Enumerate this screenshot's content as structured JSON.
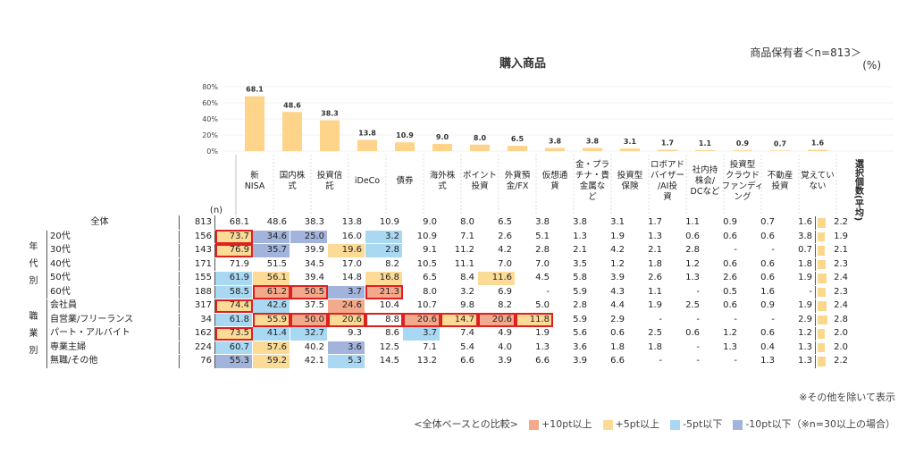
{
  "header": {
    "title": "購入商品",
    "base": "商品保有者＜n=813＞",
    "unit": "(%)"
  },
  "colors": {
    "plus10": "#f2a98c",
    "plus5": "#fcdb97",
    "minus5": "#a9d8f3",
    "minus10": "#a3b4dc",
    "bar": "#fdd48a",
    "highlight": "#e02020",
    "avg_bar": "#fbd78c"
  },
  "chart_data": {
    "type": "bar",
    "title": "購入商品",
    "categories": [
      "新\nNISA",
      "国内株\n式",
      "投資信\n託",
      "iDeCo",
      "債券",
      "海外株\n式",
      "ポイント\n投資",
      "外貨預\n金/FX",
      "仮想通\n貨",
      "金・プラ\nチナ・貴\n金属な\nど",
      "投資型\n保険",
      "ロボアド\nバイザー\n/AI投\n資",
      "社内持\n株会/\nDCなど",
      "投資型\nクラウド\nファンディ\nング",
      "不動産\n投資",
      "覚えてい\nない"
    ],
    "values": [
      68.1,
      48.6,
      38.3,
      13.8,
      10.9,
      9.0,
      8.0,
      6.5,
      3.8,
      3.8,
      3.1,
      1.7,
      1.1,
      0.9,
      0.7,
      1.6
    ],
    "yticks": [
      "80%",
      "60%",
      "40%",
      "20%",
      "0%"
    ],
    "ylim": [
      0,
      80
    ]
  },
  "table": {
    "n_header": "(n)",
    "avg_header": "選択個数(平均)",
    "rows": [
      {
        "group": "",
        "label": "全体",
        "n": "813",
        "vals": [
          "68.1",
          "48.6",
          "38.3",
          "13.8",
          "10.9",
          "9.0",
          "8.0",
          "6.5",
          "3.8",
          "3.8",
          "3.1",
          "1.7",
          "1.1",
          "0.9",
          "0.7",
          "1.6"
        ],
        "avg": "2.2",
        "avg_val": 2.2,
        "cls": [
          "",
          "",
          "",
          "",
          "",
          "",
          "",
          "",
          "",
          "",
          "",
          "",
          "",
          "",
          "",
          ""
        ]
      },
      {
        "group": "年代別",
        "label": "20代",
        "n": "156",
        "vals": [
          "73.7",
          "34.6",
          "25.0",
          "16.0",
          "3.2",
          "10.9",
          "7.1",
          "2.6",
          "5.1",
          "1.3",
          "1.9",
          "1.3",
          "0.6",
          "0.6",
          "0.6",
          "3.8"
        ],
        "avg": "1.9",
        "avg_val": 1.9,
        "cls": [
          "p5",
          "m10",
          "m10",
          "",
          "m5",
          "",
          "",
          "",
          "",
          "",
          "",
          "",
          "",
          "",
          "",
          ""
        ]
      },
      {
        "group": "",
        "label": "30代",
        "n": "143",
        "vals": [
          "76.9",
          "35.7",
          "39.9",
          "19.6",
          "2.8",
          "9.1",
          "11.2",
          "4.2",
          "2.8",
          "2.1",
          "4.2",
          "2.1",
          "2.8",
          "-",
          "-",
          "0.7"
        ],
        "avg": "2.1",
        "avg_val": 2.1,
        "cls": [
          "p5",
          "m10",
          "",
          "p5",
          "m5",
          "",
          "",
          "",
          "",
          "",
          "",
          "",
          "",
          "",
          "",
          ""
        ]
      },
      {
        "group": "",
        "label": "40代",
        "n": "171",
        "vals": [
          "71.9",
          "51.5",
          "34.5",
          "17.0",
          "8.2",
          "10.5",
          "11.1",
          "7.0",
          "7.0",
          "3.5",
          "1.2",
          "1.8",
          "1.2",
          "0.6",
          "0.6",
          "1.8"
        ],
        "avg": "2.3",
        "avg_val": 2.3,
        "cls": [
          "",
          "",
          "",
          "",
          "",
          "",
          "",
          "",
          "",
          "",
          "",
          "",
          "",
          "",
          "",
          ""
        ]
      },
      {
        "group": "",
        "label": "50代",
        "n": "155",
        "vals": [
          "61.9",
          "56.1",
          "39.4",
          "14.8",
          "16.8",
          "6.5",
          "8.4",
          "11.6",
          "4.5",
          "5.8",
          "3.9",
          "2.6",
          "1.3",
          "2.6",
          "0.6",
          "1.9"
        ],
        "avg": "2.4",
        "avg_val": 2.4,
        "cls": [
          "m5",
          "p5",
          "",
          "",
          "p5",
          "",
          "",
          "p5",
          "",
          "",
          "",
          "",
          "",
          "",
          "",
          ""
        ]
      },
      {
        "group": "",
        "label": "60代",
        "n": "188",
        "vals": [
          "58.5",
          "61.2",
          "50.5",
          "3.7",
          "21.3",
          "8.0",
          "3.2",
          "6.9",
          "-",
          "5.9",
          "4.3",
          "1.1",
          "-",
          "0.5",
          "1.6",
          "-"
        ],
        "avg": "2.3",
        "avg_val": 2.3,
        "cls": [
          "m5",
          "p10",
          "p10",
          "m10",
          "p10",
          "",
          "",
          "",
          "",
          "",
          "",
          "",
          "",
          "",
          "",
          ""
        ]
      },
      {
        "group": "職業別",
        "label": "会社員",
        "n": "317",
        "vals": [
          "74.4",
          "42.6",
          "37.5",
          "24.6",
          "10.4",
          "10.7",
          "9.8",
          "8.2",
          "5.0",
          "2.8",
          "4.4",
          "1.9",
          "2.5",
          "0.6",
          "0.9",
          "1.9"
        ],
        "avg": "2.4",
        "avg_val": 2.4,
        "cls": [
          "p5",
          "m5",
          "",
          "p10",
          "",
          "",
          "",
          "",
          "",
          "",
          "",
          "",
          "",
          "",
          "",
          ""
        ]
      },
      {
        "group": "",
        "label": "自営業/フリーランス",
        "n": "34",
        "vals": [
          "61.8",
          "55.9",
          "50.0",
          "20.6",
          "8.8",
          "20.6",
          "14.7",
          "20.6",
          "11.8",
          "5.9",
          "2.9",
          "-",
          "-",
          "-",
          "-",
          "2.9"
        ],
        "avg": "2.8",
        "avg_val": 2.8,
        "cls": [
          "m5",
          "p5",
          "p10",
          "p5",
          "",
          "p10",
          "p5",
          "p10",
          "p5",
          "",
          "",
          "",
          "",
          "",
          "",
          ""
        ]
      },
      {
        "group": "",
        "label": "パート・アルバイト",
        "n": "162",
        "vals": [
          "73.5",
          "41.4",
          "32.7",
          "9.3",
          "8.6",
          "3.7",
          "7.4",
          "4.9",
          "1.9",
          "5.6",
          "0.6",
          "2.5",
          "0.6",
          "1.2",
          "0.6",
          "1.2"
        ],
        "avg": "2.0",
        "avg_val": 2.0,
        "cls": [
          "p5",
          "m5",
          "m5",
          "",
          "",
          "m5",
          "",
          "",
          "",
          "",
          "",
          "",
          "",
          "",
          "",
          ""
        ]
      },
      {
        "group": "",
        "label": "専業主婦",
        "n": "224",
        "vals": [
          "60.7",
          "57.6",
          "40.2",
          "3.6",
          "12.5",
          "7.1",
          "5.4",
          "4.0",
          "1.3",
          "3.6",
          "1.8",
          "1.8",
          "-",
          "1.3",
          "0.4",
          "1.3"
        ],
        "avg": "2.0",
        "avg_val": 2.0,
        "cls": [
          "m5",
          "p5",
          "",
          "m10",
          "",
          "",
          "",
          "",
          "",
          "",
          "",
          "",
          "",
          "",
          "",
          ""
        ]
      },
      {
        "group": "",
        "label": "無職/その他",
        "n": "76",
        "vals": [
          "55.3",
          "59.2",
          "42.1",
          "5.3",
          "14.5",
          "13.2",
          "6.6",
          "3.9",
          "6.6",
          "3.9",
          "6.6",
          "-",
          "-",
          "-",
          "1.3",
          "1.3"
        ],
        "avg": "2.2",
        "avg_val": 2.2,
        "cls": [
          "m10",
          "p5",
          "",
          "m5",
          "",
          "",
          "",
          "",
          "",
          "",
          "",
          "",
          "",
          "",
          "",
          ""
        ]
      }
    ]
  },
  "footnote": "※その他を除いて表示",
  "legend": {
    "prefix": "<全体ベースとの比較>",
    "items": [
      {
        "key": "p10",
        "label": "+10pt以上"
      },
      {
        "key": "p5",
        "label": "+5pt以上"
      },
      {
        "key": "m5",
        "label": "-5pt以下"
      },
      {
        "key": "m10",
        "label": "-10pt以下（※n=30以上の場合）"
      }
    ]
  }
}
